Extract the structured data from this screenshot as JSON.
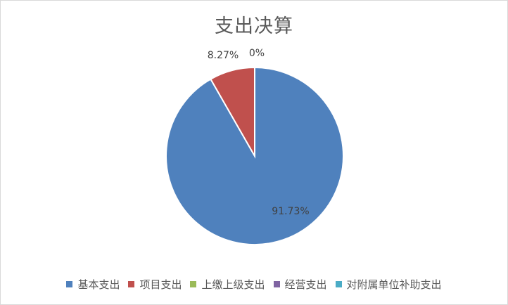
{
  "chart_data": {
    "type": "pie",
    "title": "支出决算",
    "categories": [
      "基本支出",
      "项目支出",
      "上缴上级支出",
      "经营支出",
      "对附属单位补助支出"
    ],
    "values": [
      91.73,
      8.27,
      0,
      0,
      0
    ],
    "data_labels": [
      "91.73%",
      "8.27%",
      "0%",
      "",
      ""
    ],
    "colors": [
      "#4f81bd",
      "#c0504d",
      "#9bbb59",
      "#8064a2",
      "#4bacc6"
    ],
    "legend_position": "bottom"
  }
}
